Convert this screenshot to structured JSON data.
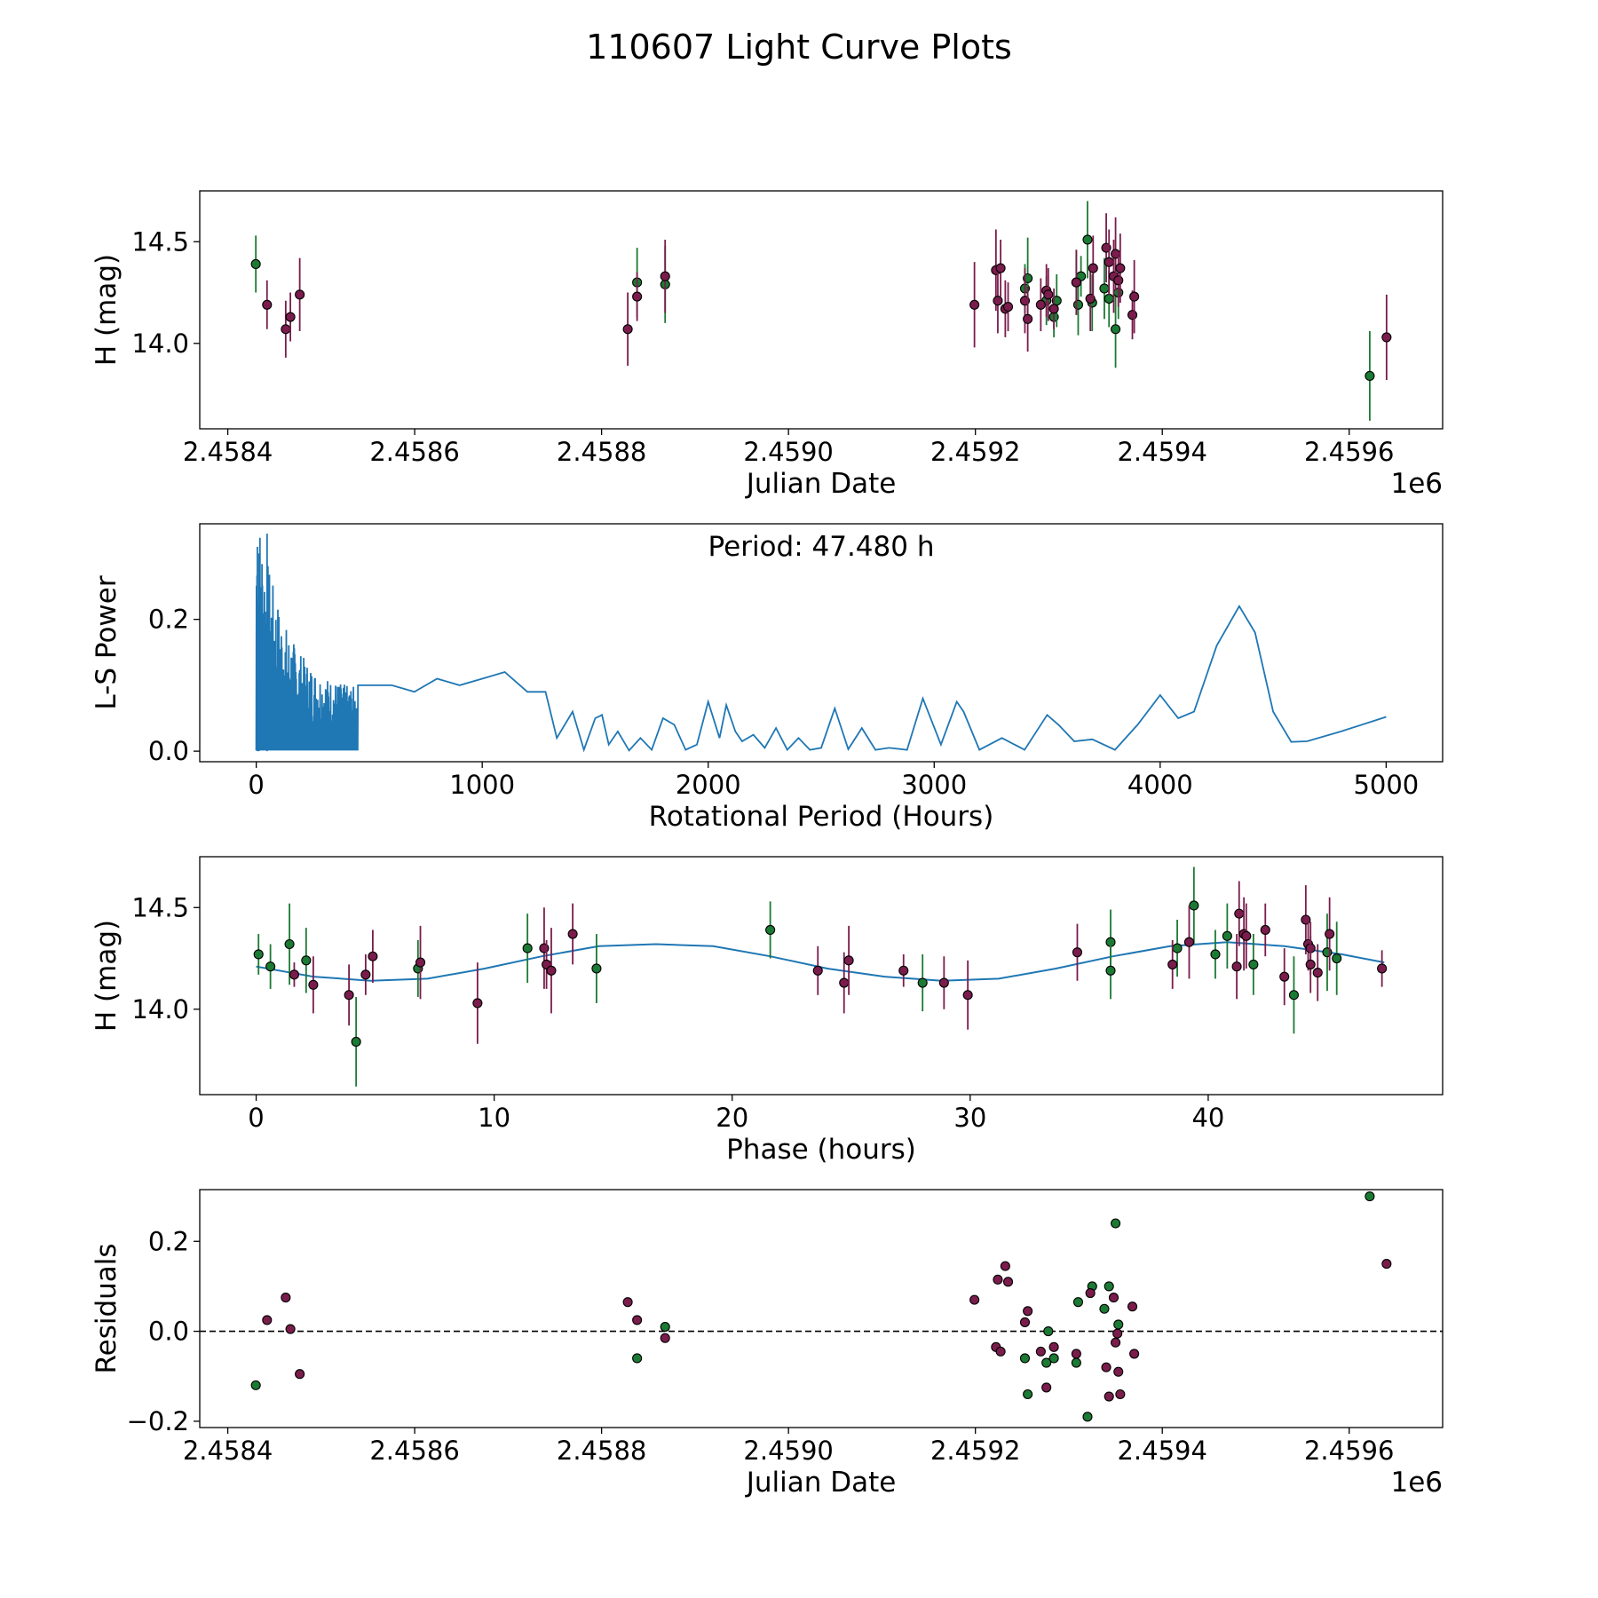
{
  "title": "110607 Light Curve Plots",
  "colors": {
    "green": "#1b7a33",
    "magenta": "#7a1c4c",
    "line": "#1f77b4",
    "axis": "#000000"
  },
  "chart_data": [
    {
      "id": "lc",
      "type": "scatter",
      "title": "",
      "xlabel": "Julian Date",
      "ylabel": "H (mag)",
      "xlim": [
        2458370,
        2459700
      ],
      "ylim": [
        13.58,
        14.75
      ],
      "xticks": [
        2458400,
        2458600,
        2458800,
        2459000,
        2459200,
        2459400,
        2459600
      ],
      "xtick_labels": [
        "2.4584",
        "2.4586",
        "2.4588",
        "2.4590",
        "2.4592",
        "2.4594",
        "2.4596"
      ],
      "yticks": [
        14.0,
        14.5
      ],
      "ytick_labels": [
        "14.0",
        "14.5"
      ],
      "offset_label": "1e6",
      "series": [
        {
          "name": "green",
          "color": "green",
          "points": [
            [
              2458430,
              14.39,
              0.14
            ],
            [
              2458838,
              14.3,
              0.17
            ],
            [
              2458868,
              14.29,
              0.19
            ],
            [
              2459253,
              14.27,
              0.12
            ],
            [
              2459256,
              14.32,
              0.2
            ],
            [
              2459276,
              14.21,
              0.12
            ],
            [
              2459284,
              14.13,
              0.1
            ],
            [
              2459287,
              14.21,
              0.13
            ],
            [
              2459308,
              14.3,
              0.16
            ],
            [
              2459310,
              14.19,
              0.15
            ],
            [
              2459313,
              14.33,
              0.1
            ],
            [
              2459320,
              14.51,
              0.19
            ],
            [
              2459325,
              14.2,
              0.14
            ],
            [
              2459338,
              14.27,
              0.15
            ],
            [
              2459343,
              14.22,
              0.14
            ],
            [
              2459350,
              14.07,
              0.19
            ],
            [
              2459353,
              14.25,
              0.13
            ],
            [
              2459622,
              13.84,
              0.22
            ]
          ]
        },
        {
          "name": "magenta",
          "color": "magenta",
          "points": [
            [
              2458442,
              14.19,
              0.12
            ],
            [
              2458462,
              14.07,
              0.14
            ],
            [
              2458467,
              14.13,
              0.12
            ],
            [
              2458477,
              14.24,
              0.18
            ],
            [
              2458828,
              14.07,
              0.18
            ],
            [
              2458838,
              14.23,
              0.12
            ],
            [
              2458868,
              14.33,
              0.18
            ],
            [
              2459199,
              14.19,
              0.21
            ],
            [
              2459222,
              14.36,
              0.2
            ],
            [
              2459224,
              14.21,
              0.16
            ],
            [
              2459227,
              14.37,
              0.14
            ],
            [
              2459232,
              14.17,
              0.14
            ],
            [
              2459235,
              14.18,
              0.12
            ],
            [
              2459253,
              14.21,
              0.16
            ],
            [
              2459256,
              14.12,
              0.16
            ],
            [
              2459270,
              14.19,
              0.13
            ],
            [
              2459276,
              14.26,
              0.13
            ],
            [
              2459278,
              14.24,
              0.13
            ],
            [
              2459284,
              14.17,
              0.1
            ],
            [
              2459308,
              14.3,
              0.16
            ],
            [
              2459323,
              14.22,
              0.16
            ],
            [
              2459326,
              14.37,
              0.16
            ],
            [
              2459340,
              14.47,
              0.17
            ],
            [
              2459343,
              14.4,
              0.16
            ],
            [
              2459348,
              14.33,
              0.18
            ],
            [
              2459350,
              14.44,
              0.18
            ],
            [
              2459353,
              14.31,
              0.13
            ],
            [
              2459355,
              14.37,
              0.17
            ],
            [
              2459368,
              14.14,
              0.12
            ],
            [
              2459370,
              14.23,
              0.18
            ],
            [
              2459640,
              14.03,
              0.21
            ]
          ]
        }
      ]
    },
    {
      "id": "ls",
      "type": "line",
      "title": "",
      "annotation": "Period: 47.480 h",
      "xlabel": "Rotational Period (Hours)",
      "ylabel": "L-S Power",
      "xlim": [
        -250,
        5250
      ],
      "ylim": [
        -0.016,
        0.345
      ],
      "xticks": [
        0,
        1000,
        2000,
        3000,
        4000,
        5000
      ],
      "xtick_labels": [
        "0",
        "1000",
        "2000",
        "3000",
        "4000",
        "5000"
      ],
      "yticks": [
        0.0,
        0.2
      ],
      "ytick_labels": [
        "0.0",
        "0.2"
      ],
      "series": [
        {
          "name": "power",
          "color": "line",
          "x": [
            0,
            450,
            600,
            700,
            800,
            900,
            1000,
            1100,
            1200,
            1280,
            1330,
            1400,
            1450,
            1500,
            1530,
            1560,
            1600,
            1650,
            1700,
            1750,
            1800,
            1850,
            1900,
            1950,
            2000,
            2050,
            2080,
            2120,
            2150,
            2200,
            2250,
            2300,
            2350,
            2400,
            2450,
            2500,
            2560,
            2620,
            2680,
            2740,
            2800,
            2880,
            2950,
            3030,
            3100,
            3130,
            3200,
            3300,
            3400,
            3500,
            3550,
            3620,
            3700,
            3800,
            3900,
            4000,
            4080,
            4150,
            4250,
            4350,
            4420,
            4500,
            4580,
            4650,
            4800,
            5000
          ],
          "y": [
            0.3,
            0.1,
            0.1,
            0.09,
            0.11,
            0.1,
            0.11,
            0.12,
            0.09,
            0.09,
            0.02,
            0.06,
            0.002,
            0.05,
            0.055,
            0.01,
            0.03,
            0.001,
            0.02,
            0.002,
            0.05,
            0.04,
            0.002,
            0.01,
            0.075,
            0.02,
            0.07,
            0.03,
            0.015,
            0.025,
            0.005,
            0.035,
            0.002,
            0.02,
            0.002,
            0.005,
            0.065,
            0.003,
            0.035,
            0.002,
            0.005,
            0.002,
            0.08,
            0.01,
            0.075,
            0.06,
            0.002,
            0.02,
            0.002,
            0.055,
            0.04,
            0.015,
            0.018,
            0.002,
            0.04,
            0.085,
            0.05,
            0.06,
            0.16,
            0.22,
            0.18,
            0.06,
            0.014,
            0.015,
            0.03,
            0.052
          ]
        }
      ]
    },
    {
      "id": "phase",
      "type": "scatter",
      "title": "",
      "xlabel": "Phase (hours)",
      "ylabel": "H (mag)",
      "xlim": [
        -2.37,
        49.85
      ],
      "ylim": [
        13.58,
        14.75
      ],
      "xticks": [
        0,
        10,
        20,
        30,
        40
      ],
      "xtick_labels": [
        "0",
        "10",
        "20",
        "30",
        "40"
      ],
      "yticks": [
        14.0,
        14.5
      ],
      "ytick_labels": [
        "14.0",
        "14.5"
      ],
      "model": {
        "x": [
          0.0,
          2.4,
          4.8,
          7.2,
          9.6,
          12.0,
          14.4,
          16.8,
          19.2,
          21.6,
          24.0,
          26.4,
          28.8,
          31.2,
          33.6,
          36.0,
          38.4,
          40.8,
          43.2,
          45.6,
          47.4
        ],
        "y": [
          14.21,
          14.16,
          14.14,
          14.15,
          14.2,
          14.26,
          14.31,
          14.32,
          14.31,
          14.26,
          14.2,
          14.16,
          14.14,
          14.15,
          14.2,
          14.26,
          14.31,
          14.33,
          14.31,
          14.27,
          14.23
        ]
      },
      "series": [
        {
          "name": "green",
          "color": "green",
          "points": [
            [
              0.1,
              14.27,
              0.1
            ],
            [
              0.6,
              14.21,
              0.11
            ],
            [
              1.4,
              14.32,
              0.2
            ],
            [
              2.1,
              14.24,
              0.16
            ],
            [
              4.2,
              13.84,
              0.22
            ],
            [
              6.8,
              14.2,
              0.14
            ],
            [
              11.4,
              14.3,
              0.17
            ],
            [
              14.3,
              14.2,
              0.17
            ],
            [
              21.6,
              14.39,
              0.14
            ],
            [
              28.0,
              14.13,
              0.14
            ],
            [
              35.9,
              14.33,
              0.16
            ],
            [
              35.9,
              14.19,
              0.14
            ],
            [
              38.7,
              14.3,
              0.14
            ],
            [
              39.4,
              14.51,
              0.19
            ],
            [
              40.3,
              14.27,
              0.12
            ],
            [
              40.8,
              14.36,
              0.16
            ],
            [
              41.9,
              14.22,
              0.15
            ],
            [
              43.6,
              14.07,
              0.19
            ],
            [
              45.0,
              14.28,
              0.19
            ],
            [
              45.4,
              14.25,
              0.18
            ]
          ]
        },
        {
          "name": "magenta",
          "color": "magenta",
          "points": [
            [
              1.6,
              14.17,
              0.06
            ],
            [
              2.4,
              14.12,
              0.14
            ],
            [
              3.9,
              14.07,
              0.15
            ],
            [
              4.6,
              14.17,
              0.1
            ],
            [
              4.9,
              14.26,
              0.13
            ],
            [
              6.9,
              14.23,
              0.18
            ],
            [
              9.3,
              14.03,
              0.2
            ],
            [
              12.1,
              14.3,
              0.2
            ],
            [
              12.2,
              14.22,
              0.12
            ],
            [
              12.4,
              14.19,
              0.21
            ],
            [
              13.3,
              14.37,
              0.15
            ],
            [
              23.6,
              14.19,
              0.12
            ],
            [
              24.7,
              14.13,
              0.15
            ],
            [
              24.9,
              14.24,
              0.17
            ],
            [
              27.2,
              14.19,
              0.08
            ],
            [
              28.9,
              14.13,
              0.13
            ],
            [
              29.9,
              14.07,
              0.17
            ],
            [
              34.5,
              14.28,
              0.14
            ],
            [
              38.5,
              14.22,
              0.12
            ],
            [
              39.2,
              14.33,
              0.18
            ],
            [
              41.2,
              14.21,
              0.16
            ],
            [
              41.3,
              14.47,
              0.16
            ],
            [
              41.5,
              14.37,
              0.18
            ],
            [
              41.6,
              14.36,
              0.16
            ],
            [
              42.4,
              14.39,
              0.13
            ],
            [
              43.2,
              14.16,
              0.14
            ],
            [
              44.1,
              14.44,
              0.17
            ],
            [
              44.2,
              14.32,
              0.13
            ],
            [
              44.3,
              14.3,
              0.13
            ],
            [
              44.3,
              14.22,
              0.14
            ],
            [
              44.6,
              14.18,
              0.14
            ],
            [
              45.1,
              14.37,
              0.18
            ],
            [
              47.3,
              14.2,
              0.09
            ]
          ]
        }
      ]
    },
    {
      "id": "resid",
      "type": "scatter",
      "title": "",
      "xlabel": "Julian Date",
      "ylabel": "Residuals",
      "xlim": [
        2458370,
        2459700
      ],
      "ylim": [
        -0.214,
        0.315
      ],
      "xticks": [
        2458400,
        2458600,
        2458800,
        2459000,
        2459200,
        2459400,
        2459600
      ],
      "xtick_labels": [
        "2.4584",
        "2.4586",
        "2.4588",
        "2.4590",
        "2.4592",
        "2.4594",
        "2.4596"
      ],
      "yticks": [
        -0.2,
        0.0,
        0.2
      ],
      "ytick_labels": [
        "−0.2",
        "0.0",
        "0.2"
      ],
      "offset_label": "1e6",
      "reference_line": 0.0,
      "series": [
        {
          "name": "green",
          "color": "green",
          "points": [
            [
              2458430,
              -0.12
            ],
            [
              2458838,
              -0.06
            ],
            [
              2458868,
              0.01
            ],
            [
              2459253,
              -0.06
            ],
            [
              2459256,
              -0.14
            ],
            [
              2459276,
              -0.07
            ],
            [
              2459278,
              0.0
            ],
            [
              2459284,
              -0.06
            ],
            [
              2459308,
              -0.07
            ],
            [
              2459310,
              0.065
            ],
            [
              2459320,
              -0.19
            ],
            [
              2459325,
              0.1
            ],
            [
              2459338,
              0.05
            ],
            [
              2459343,
              0.1
            ],
            [
              2459350,
              0.24
            ],
            [
              2459353,
              0.015
            ],
            [
              2459622,
              0.3
            ]
          ]
        },
        {
          "name": "magenta",
          "color": "magenta",
          "points": [
            [
              2458442,
              0.025
            ],
            [
              2458462,
              0.075
            ],
            [
              2458467,
              0.005
            ],
            [
              2458477,
              -0.095
            ],
            [
              2458828,
              0.065
            ],
            [
              2458838,
              0.025
            ],
            [
              2458868,
              -0.015
            ],
            [
              2459199,
              0.07
            ],
            [
              2459222,
              -0.035
            ],
            [
              2459224,
              0.115
            ],
            [
              2459227,
              -0.045
            ],
            [
              2459232,
              0.145
            ],
            [
              2459235,
              0.11
            ],
            [
              2459253,
              0.02
            ],
            [
              2459256,
              0.045
            ],
            [
              2459270,
              -0.045
            ],
            [
              2459276,
              -0.125
            ],
            [
              2459284,
              -0.035
            ],
            [
              2459308,
              -0.05
            ],
            [
              2459323,
              0.085
            ],
            [
              2459340,
              -0.08
            ],
            [
              2459343,
              -0.145
            ],
            [
              2459348,
              0.075
            ],
            [
              2459350,
              -0.025
            ],
            [
              2459353,
              -0.09
            ],
            [
              2459355,
              -0.14
            ],
            [
              2459368,
              0.055
            ],
            [
              2459370,
              -0.05
            ],
            [
              2459352,
              -0.005
            ],
            [
              2459640,
              0.15
            ]
          ]
        }
      ]
    }
  ]
}
